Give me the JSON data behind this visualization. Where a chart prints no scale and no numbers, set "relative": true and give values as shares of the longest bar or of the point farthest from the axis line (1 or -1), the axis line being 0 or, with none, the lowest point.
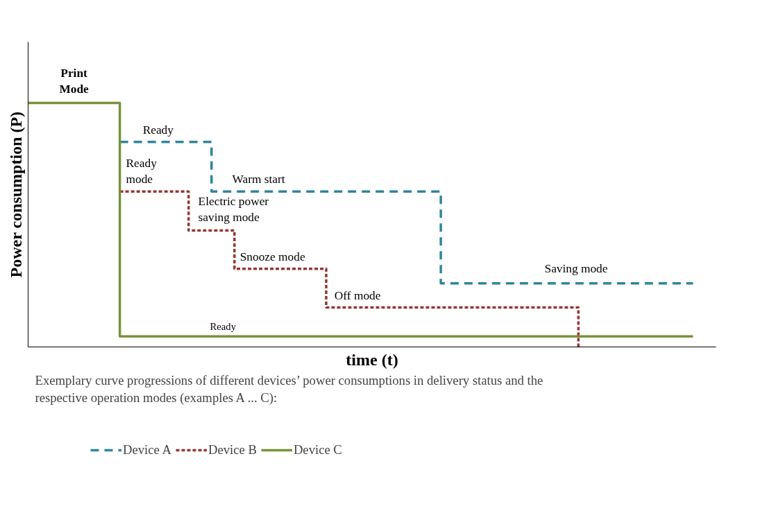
{
  "chart_data": {
    "type": "step",
    "relative": true,
    "xlabel": "time (t)",
    "ylabel": "Power consumption (P)",
    "legend": "bottom",
    "categories": [
      null,
      null,
      null,
      null,
      null,
      null,
      null,
      null,
      null,
      null,
      null,
      null,
      null,
      null,
      null,
      null,
      null,
      null,
      null,
      null,
      null,
      null,
      null,
      null,
      null,
      null,
      null,
      null,
      null,
      null,
      null
    ],
    "series": [
      {
        "name": "Device A",
        "color": "#31859c",
        "line_style": "dashed",
        "values": [
          null,
          null,
          null,
          null,
          0.84,
          0.84,
          0.84,
          0.84,
          0.637,
          0.637,
          0.637,
          0.637,
          0.637,
          0.637,
          0.637,
          0.637,
          0.637,
          0.637,
          0.261,
          0.261,
          0.261,
          0.261,
          0.261,
          0.261,
          0.261,
          0.261,
          0.261,
          0.261,
          0.261,
          0.261,
          null
        ]
      },
      {
        "name": "Device B",
        "color": "#953735",
        "line_style": "dotted",
        "values": [
          null,
          null,
          null,
          null,
          0.637,
          0.637,
          0.637,
          0.477,
          0.477,
          0.32,
          0.32,
          0.32,
          0.32,
          0.162,
          0.162,
          0.162,
          0.162,
          0.162,
          0.162,
          0.162,
          0.162,
          0.162,
          0.162,
          0.162,
          0,
          null,
          null,
          null,
          null,
          null,
          null
        ]
      },
      {
        "name": "Device C",
        "color": "#77933c",
        "line_style": "solid",
        "values": [
          1,
          1,
          1,
          1,
          0.043,
          0.043,
          0.043,
          0.043,
          0.043,
          0.043,
          0.043,
          0.043,
          0.043,
          0.043,
          0.043,
          0.043,
          0.043,
          0.043,
          0.043,
          0.043,
          0.043,
          0.043,
          0.043,
          0.043,
          0.043,
          0.043,
          0.043,
          0.043,
          0.043,
          0.043,
          null
        ]
      }
    ],
    "annotations": [
      "Print\nMode",
      "Ready",
      "Ready\nmode",
      "Warm start",
      "Electric power\nsaving mode",
      "Snooze mode",
      "Off mode",
      "Saving mode",
      "Ready",
      "Exemplary curve progressions of different devices’ power consumptions in delivery status and the\nrespective operation modes (examples A ... C):"
    ]
  }
}
